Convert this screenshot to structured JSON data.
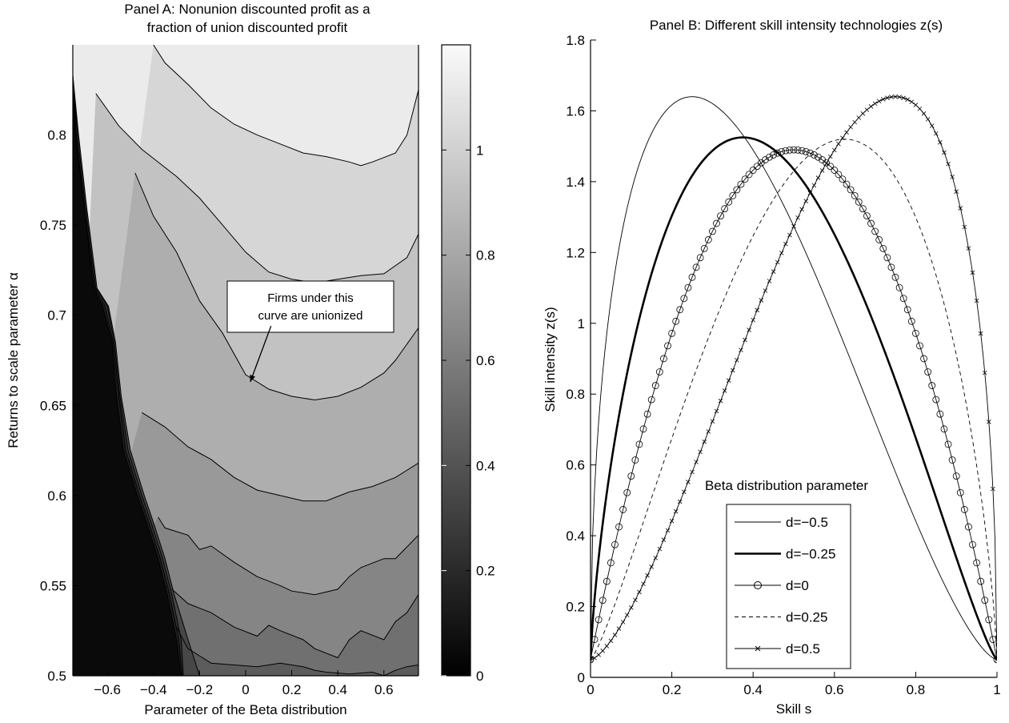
{
  "chart_data": [
    {
      "type": "contour",
      "title_lines": [
        "Panel A: Nonunion discounted profit as a",
        "fraction of union discounted profit"
      ],
      "xlabel": "Parameter of the Beta distribution",
      "ylabel": "Returns to scale parameter  α",
      "xlim": [
        -0.75,
        0.75
      ],
      "ylim": [
        0.5,
        0.85
      ],
      "xticks": [
        -0.6,
        -0.4,
        -0.2,
        0,
        0.2,
        0.4,
        0.6
      ],
      "xtick_labels": [
        "−0.6",
        "−0.4",
        "−0.2",
        "0",
        "0.2",
        "0.4",
        "0.6"
      ],
      "yticks": [
        0.5,
        0.55,
        0.6,
        0.65,
        0.7,
        0.75,
        0.8
      ],
      "ytick_labels": [
        "0.5",
        "0.55",
        "0.6",
        "0.65",
        "0.7",
        "0.75",
        "0.8"
      ],
      "colorbar": {
        "lim": [
          0,
          1.2
        ],
        "ticks": [
          0,
          0.2,
          0.4,
          0.6,
          0.8,
          1
        ],
        "tick_labels": [
          "0",
          "0.2",
          "0.4",
          "0.6",
          "0.8",
          "1"
        ]
      },
      "contours": [
        {
          "level": 0.1,
          "x": [
            -0.75,
            -0.74,
            -0.7,
            -0.67,
            -0.66,
            -0.62,
            -0.58,
            -0.56,
            -0.53,
            -0.47,
            -0.43,
            -0.38,
            -0.34,
            -0.3,
            -0.28
          ],
          "y": [
            0.833,
            0.8,
            0.76,
            0.725,
            0.715,
            0.705,
            0.685,
            0.655,
            0.625,
            0.6,
            0.585,
            0.565,
            0.545,
            0.52,
            0.5
          ]
        },
        {
          "level": 0.2,
          "x": [
            -0.75,
            -0.735,
            -0.7,
            -0.665,
            -0.655,
            -0.61,
            -0.575,
            -0.55,
            -0.52,
            -0.46,
            -0.42,
            -0.37,
            -0.33,
            -0.29,
            -0.275
          ],
          "y": [
            0.833,
            0.8,
            0.76,
            0.725,
            0.715,
            0.705,
            0.685,
            0.655,
            0.625,
            0.6,
            0.585,
            0.565,
            0.545,
            0.52,
            0.5
          ]
        },
        {
          "level": 0.3,
          "x": [
            -0.75,
            -0.73,
            -0.695,
            -0.66,
            -0.65,
            -0.6,
            -0.57,
            -0.545,
            -0.51,
            -0.45,
            -0.41,
            -0.36,
            -0.32,
            -0.28,
            -0.27
          ],
          "y": [
            0.833,
            0.8,
            0.76,
            0.725,
            0.715,
            0.705,
            0.685,
            0.655,
            0.625,
            0.6,
            0.585,
            0.565,
            0.545,
            0.52,
            0.5
          ]
        },
        {
          "level": 0.4,
          "x": [
            -0.75,
            -0.725,
            -0.69,
            -0.655,
            -0.645,
            -0.595,
            -0.565,
            -0.54,
            -0.5,
            -0.44,
            -0.4,
            -0.35,
            -0.31,
            -0.25,
            -0.2
          ],
          "y": [
            0.833,
            0.8,
            0.76,
            0.725,
            0.715,
            0.705,
            0.685,
            0.655,
            0.625,
            0.6,
            0.585,
            0.565,
            0.545,
            0.52,
            0.5
          ]
        },
        {
          "level": 0.5,
          "x": [
            -0.3,
            -0.25,
            -0.15,
            -0.05,
            0.05,
            0.15,
            0.25,
            0.3,
            0.35,
            0.45,
            0.55,
            0.6,
            0.65,
            0.7,
            0.75
          ],
          "y": [
            0.527,
            0.515,
            0.507,
            0.506,
            0.505,
            0.507,
            0.505,
            0.503,
            0.502,
            0.501,
            0.502,
            0.5,
            0.503,
            0.505,
            0.506
          ]
        },
        {
          "level": 0.6,
          "x": [
            -0.32,
            -0.25,
            -0.15,
            -0.05,
            0.05,
            0.1,
            0.15,
            0.25,
            0.3,
            0.4,
            0.45,
            0.5,
            0.6,
            0.65,
            0.7,
            0.75
          ],
          "y": [
            0.548,
            0.54,
            0.535,
            0.527,
            0.522,
            0.528,
            0.525,
            0.52,
            0.515,
            0.51,
            0.52,
            0.525,
            0.52,
            0.53,
            0.535,
            0.545
          ]
        },
        {
          "level": 0.7,
          "x": [
            -0.38,
            -0.35,
            -0.25,
            -0.2,
            -0.15,
            -0.05,
            0.05,
            0.15,
            0.2,
            0.3,
            0.4,
            0.45,
            0.5,
            0.6,
            0.65,
            0.75
          ],
          "y": [
            0.588,
            0.582,
            0.578,
            0.57,
            0.572,
            0.563,
            0.555,
            0.55,
            0.547,
            0.545,
            0.548,
            0.555,
            0.56,
            0.565,
            0.565,
            0.578
          ]
        },
        {
          "level": 0.8,
          "x": [
            -0.45,
            -0.35,
            -0.25,
            -0.15,
            -0.05,
            0.05,
            0.15,
            0.25,
            0.35,
            0.45,
            0.55,
            0.65,
            0.75
          ],
          "y": [
            0.646,
            0.638,
            0.627,
            0.62,
            0.61,
            0.603,
            0.6,
            0.597,
            0.597,
            0.602,
            0.605,
            0.61,
            0.618
          ]
        },
        {
          "level": 0.9,
          "x": [
            -0.48,
            -0.4,
            -0.3,
            -0.2,
            -0.1,
            0.0,
            0.1,
            0.2,
            0.3,
            0.4,
            0.5,
            0.6,
            0.65,
            0.75
          ],
          "y": [
            0.779,
            0.755,
            0.735,
            0.708,
            0.69,
            0.667,
            0.659,
            0.655,
            0.653,
            0.655,
            0.66,
            0.668,
            0.675,
            0.693
          ]
        },
        {
          "level": 1.0,
          "x": [
            -0.65,
            -0.55,
            -0.45,
            -0.3,
            -0.2,
            -0.1,
            0.0,
            0.1,
            0.2,
            0.3,
            0.4,
            0.5,
            0.6,
            0.7,
            0.75
          ],
          "y": [
            0.823,
            0.805,
            0.792,
            0.777,
            0.765,
            0.75,
            0.735,
            0.724,
            0.72,
            0.718,
            0.72,
            0.722,
            0.723,
            0.732,
            0.745
          ]
        },
        {
          "level": 1.1,
          "x": [
            -0.4,
            -0.35,
            -0.25,
            -0.15,
            -0.05,
            0.05,
            0.15,
            0.25,
            0.35,
            0.45,
            0.5,
            0.55,
            0.65,
            0.7,
            0.75
          ],
          "y": [
            0.85,
            0.84,
            0.828,
            0.815,
            0.806,
            0.8,
            0.795,
            0.79,
            0.788,
            0.785,
            0.783,
            0.785,
            0.79,
            0.8,
            0.825
          ]
        }
      ],
      "annotation": {
        "text_lines": [
          "Firms under this",
          "curve are unionized"
        ],
        "arrow_tip": [
          0.02,
          0.663
        ],
        "box_anchor": [
          0.11,
          0.694
        ]
      }
    },
    {
      "type": "line",
      "title": "Panel B: Different skill intensity technologies z(s)",
      "xlabel": "Skill s",
      "ylabel": "Skill intensity z(s)",
      "xlim": [
        0,
        1
      ],
      "ylim": [
        0,
        1.8
      ],
      "xticks": [
        0,
        0.2,
        0.4,
        0.6,
        0.8,
        1
      ],
      "xtick_labels": [
        "0",
        "0.2",
        "0.4",
        "0.6",
        "0.8",
        "1"
      ],
      "yticks": [
        0,
        0.2,
        0.4,
        0.6,
        0.8,
        1,
        1.2,
        1.4,
        1.6,
        1.8
      ],
      "ytick_labels": [
        "0",
        "0.2",
        "0.4",
        "0.6",
        "0.8",
        "1",
        "1.2",
        "1.4",
        "1.6",
        "1.8"
      ],
      "legend_title": "Beta distribution parameter",
      "legend_position": "bottom-center",
      "series": [
        {
          "name": "d=−0.5",
          "style": "thin",
          "d": -0.5,
          "peak_x": 0.25,
          "peak_y": 1.64
        },
        {
          "name": "d=−0.25",
          "style": "thick",
          "d": -0.25,
          "peak_x": 0.375,
          "peak_y": 1.525
        },
        {
          "name": "d=0",
          "style": "circle",
          "d": 0,
          "peak_x": 0.5,
          "peak_y": 1.49
        },
        {
          "name": "d=0.25",
          "style": "dashed",
          "d": 0.25,
          "peak_x": 0.625,
          "peak_y": 1.52
        },
        {
          "name": "d=0.5",
          "style": "cross",
          "d": 0.5,
          "peak_x": 0.75,
          "peak_y": 1.64
        }
      ],
      "endpoint_value": 0.05
    }
  ]
}
